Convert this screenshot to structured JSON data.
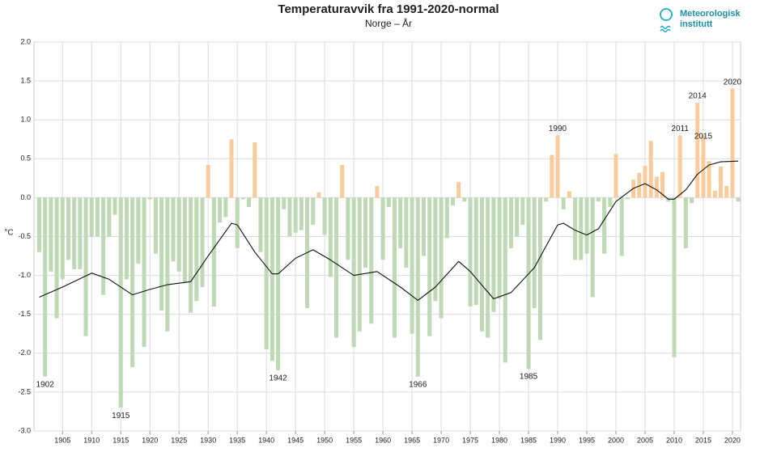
{
  "chart_data": {
    "type": "bar",
    "title": "Temperaturavvik fra 1991-2020-normal",
    "subtitle": "Norge – År",
    "y_label": "°C",
    "logo": [
      "Meteorologisk",
      "institutt"
    ],
    "x": [
      1901,
      1902,
      1903,
      1904,
      1905,
      1906,
      1907,
      1908,
      1909,
      1910,
      1911,
      1912,
      1913,
      1914,
      1915,
      1916,
      1917,
      1918,
      1919,
      1920,
      1921,
      1922,
      1923,
      1924,
      1925,
      1926,
      1927,
      1928,
      1929,
      1930,
      1931,
      1932,
      1933,
      1934,
      1935,
      1936,
      1937,
      1938,
      1939,
      1940,
      1941,
      1942,
      1943,
      1944,
      1945,
      1946,
      1947,
      1948,
      1949,
      1950,
      1951,
      1952,
      1953,
      1954,
      1955,
      1956,
      1957,
      1958,
      1959,
      1960,
      1961,
      1962,
      1963,
      1964,
      1965,
      1966,
      1967,
      1968,
      1969,
      1970,
      1971,
      1972,
      1973,
      1974,
      1975,
      1976,
      1977,
      1978,
      1979,
      1980,
      1981,
      1982,
      1983,
      1984,
      1985,
      1986,
      1987,
      1988,
      1989,
      1990,
      1991,
      1992,
      1993,
      1994,
      1995,
      1996,
      1997,
      1998,
      1999,
      2000,
      2001,
      2002,
      2003,
      2004,
      2005,
      2006,
      2007,
      2008,
      2009,
      2010,
      2011,
      2012,
      2013,
      2014,
      2015,
      2016,
      2017,
      2018,
      2019,
      2020,
      2021
    ],
    "values": [
      -0.7,
      -2.3,
      -0.95,
      -1.55,
      -1.05,
      -0.8,
      -0.92,
      -0.92,
      -1.78,
      -0.5,
      -0.5,
      -1.25,
      -0.5,
      -0.22,
      -2.7,
      -1.05,
      -2.18,
      -0.85,
      -1.92,
      -0.02,
      -0.72,
      -1.45,
      -1.72,
      -0.82,
      -0.95,
      -1.1,
      -1.48,
      -1.33,
      -1.15,
      0.42,
      -1.4,
      -0.32,
      -0.25,
      0.75,
      -0.65,
      -0.02,
      -0.12,
      0.71,
      -0.7,
      -1.95,
      -2.1,
      -2.22,
      -0.15,
      -0.5,
      -0.45,
      -0.42,
      -1.42,
      -0.35,
      0.07,
      -0.48,
      -1.02,
      -1.8,
      0.42,
      -0.8,
      -1.92,
      -1.72,
      -0.9,
      -1.62,
      0.15,
      -0.8,
      -0.12,
      -1.8,
      -0.65,
      -0.9,
      -1.75,
      -2.3,
      -0.75,
      -1.78,
      -1.33,
      -1.55,
      -0.52,
      -0.1,
      0.2,
      -0.05,
      -1.4,
      -1.38,
      -1.72,
      -1.8,
      -1.47,
      -1.3,
      -2.12,
      -0.65,
      -0.5,
      -0.35,
      -2.2,
      -1.42,
      -1.83,
      -0.05,
      0.55,
      0.8,
      -0.15,
      0.08,
      -0.8,
      -0.8,
      -0.72,
      -1.28,
      -0.05,
      -0.72,
      -0.12,
      0.56,
      -0.75,
      -0.02,
      0.23,
      0.32,
      0.41,
      0.73,
      0.27,
      0.33,
      -0.05,
      -2.05,
      0.8,
      -0.65,
      -0.07,
      1.22,
      0.8,
      0.47,
      0.09,
      0.4,
      0.15,
      1.4,
      -0.05
    ],
    "positive_color": "#f9cc9d",
    "negative_color": "#bfd9b6",
    "trend": {
      "color": "#111111",
      "x": [
        1901,
        1905,
        1910,
        1913,
        1917,
        1920,
        1923,
        1927,
        1930,
        1934,
        1935,
        1938,
        1941,
        1942,
        1945,
        1948,
        1951,
        1955,
        1959,
        1963,
        1966,
        1969,
        1973,
        1975,
        1979,
        1982,
        1986,
        1990,
        1991,
        1993,
        1995,
        1997,
        2000,
        2003,
        2005,
        2007,
        2009,
        2010,
        2012,
        2014,
        2016,
        2018,
        2021
      ],
      "values": [
        -1.28,
        -1.15,
        -0.97,
        -1.05,
        -1.25,
        -1.18,
        -1.12,
        -1.08,
        -0.75,
        -0.33,
        -0.35,
        -0.7,
        -0.98,
        -0.98,
        -0.78,
        -0.67,
        -0.8,
        -1.0,
        -0.95,
        -1.15,
        -1.32,
        -1.15,
        -0.82,
        -0.95,
        -1.3,
        -1.22,
        -0.9,
        -0.35,
        -0.33,
        -0.42,
        -0.48,
        -0.4,
        -0.05,
        0.12,
        0.18,
        0.1,
        -0.02,
        -0.02,
        0.1,
        0.3,
        0.42,
        0.46,
        0.47
      ]
    },
    "annotations": [
      {
        "label": "1902",
        "x": 1902
      },
      {
        "label": "1915",
        "x": 1915
      },
      {
        "label": "1942",
        "x": 1942
      },
      {
        "label": "1966",
        "x": 1966
      },
      {
        "label": "1985",
        "x": 1985
      },
      {
        "label": "1990",
        "x": 1990
      },
      {
        "label": "2011",
        "x": 2011
      },
      {
        "label": "2014",
        "x": 2014
      },
      {
        "label": "2015",
        "x": 2015
      },
      {
        "label": "2020",
        "x": 2020
      }
    ],
    "xlim": [
      1900.1,
      2021.4
    ],
    "ylim": [
      -3.0,
      2.0
    ],
    "xticks": [
      1905,
      1910,
      1915,
      1920,
      1925,
      1930,
      1935,
      1940,
      1945,
      1950,
      1955,
      1960,
      1965,
      1970,
      1975,
      1980,
      1985,
      1990,
      1995,
      2000,
      2005,
      2010,
      2015,
      2020
    ],
    "yticks": [
      {
        "value": -3.0,
        "label": "-3.0"
      },
      {
        "value": -2.5,
        "label": "-2.5"
      },
      {
        "value": -2.0,
        "label": "-2.0"
      },
      {
        "value": -1.5,
        "label": "-1.5"
      },
      {
        "value": -1.0,
        "label": "-1.0"
      },
      {
        "value": -0.5,
        "label": "-0.5"
      },
      {
        "value": 0,
        "label": "0.0"
      },
      {
        "value": 0.5,
        "label": "0.5"
      },
      {
        "value": 1.0,
        "label": "1.0"
      },
      {
        "value": 1.5,
        "label": "1.5"
      },
      {
        "value": 2.0,
        "label": "2.0"
      }
    ],
    "grid": true
  }
}
